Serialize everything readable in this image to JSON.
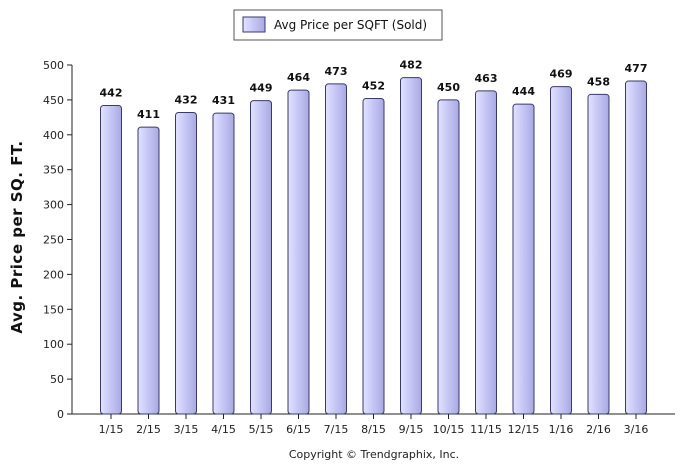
{
  "chart_data": {
    "type": "bar",
    "categories": [
      "1/15",
      "2/15",
      "3/15",
      "4/15",
      "5/15",
      "6/15",
      "7/15",
      "8/15",
      "9/15",
      "10/15",
      "11/15",
      "12/15",
      "1/16",
      "2/16",
      "3/16"
    ],
    "series": [
      {
        "name": "Avg Price per SQFT (Sold)",
        "values": [
          442,
          411,
          432,
          431,
          449,
          464,
          473,
          452,
          482,
          450,
          463,
          444,
          469,
          458,
          477
        ]
      }
    ],
    "ylabel": "Avg. Price per SQ. FT.",
    "xlabel": "",
    "ylim": [
      0,
      500
    ],
    "yticks": [
      0,
      50,
      100,
      150,
      200,
      250,
      300,
      350,
      400,
      450,
      500
    ],
    "legend_position": "top-center",
    "grid": false,
    "colors": {
      "bar_fill": "#c8c8f5",
      "bar_stroke": "#3a3a6a",
      "axis": "#222222"
    }
  },
  "footer": {
    "copyright": "Copyright © Trendgraphix, Inc."
  }
}
